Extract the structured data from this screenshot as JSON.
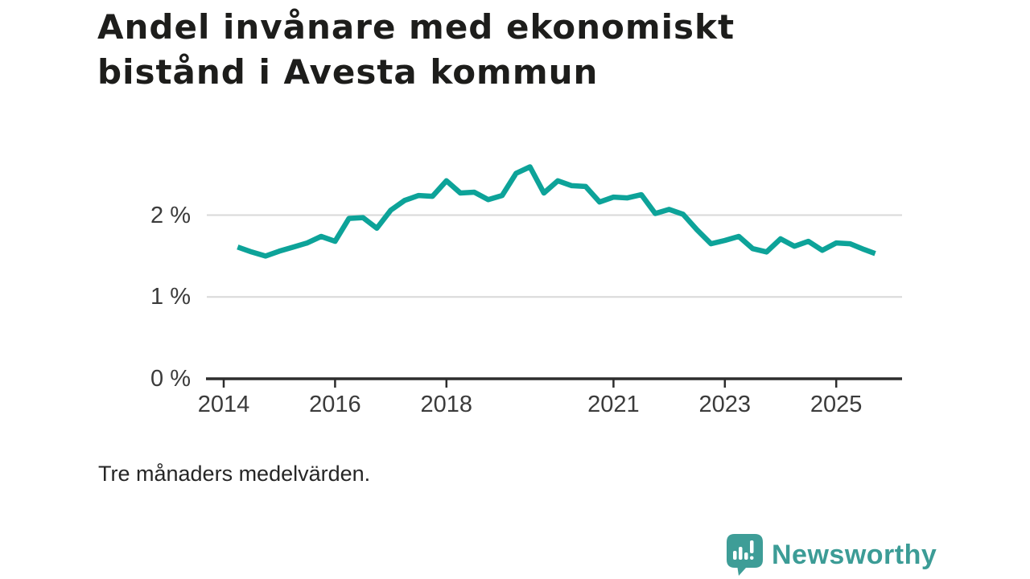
{
  "header": {
    "title_line1": "Andel invånare med ekonomiskt",
    "title_line2": "bistånd i Avesta kommun"
  },
  "footnote": "Tre månaders medelvärden.",
  "branding": {
    "name": "Newsworthy",
    "icon": "newsworthy-speech-bubble-bar-chart-icon",
    "color": "#3c9c96"
  },
  "colors": {
    "line": "#0da399",
    "grid": "#d8d8d8",
    "axis": "#2d2d2d",
    "tick_label": "#3b3b3b",
    "title": "#1d1d1b",
    "background": "#ffffff"
  },
  "chart_data": {
    "type": "line",
    "title": "Andel invånare med ekonomiskt bistånd i Avesta kommun",
    "subtitle_note": "Tre månaders medelvärden.",
    "xlabel": "",
    "ylabel": "",
    "unit": "%",
    "grid": "horizontal",
    "legend": "none",
    "xlim": [
      2013.67,
      2026.18
    ],
    "ylim": [
      0,
      2.75
    ],
    "y_ticks": [
      {
        "value": 2,
        "label": "2 %"
      },
      {
        "value": 1,
        "label": "1 %"
      },
      {
        "value": 0,
        "label": "0 %"
      }
    ],
    "x_ticks": [
      {
        "value": 2014,
        "label": "2014"
      },
      {
        "value": 2016,
        "label": "2016"
      },
      {
        "value": 2018,
        "label": "2018"
      },
      {
        "value": 2021,
        "label": "2021"
      },
      {
        "value": 2023,
        "label": "2023"
      },
      {
        "value": 2025,
        "label": "2025"
      }
    ],
    "series": [
      {
        "name": "Andel invånare med ekonomiskt bistånd",
        "points": [
          [
            2014.25,
            1.61
          ],
          [
            2014.5,
            1.55
          ],
          [
            2014.75,
            1.5
          ],
          [
            2015.0,
            1.56
          ],
          [
            2015.25,
            1.61
          ],
          [
            2015.5,
            1.66
          ],
          [
            2015.75,
            1.74
          ],
          [
            2016.0,
            1.68
          ],
          [
            2016.25,
            1.96
          ],
          [
            2016.5,
            1.97
          ],
          [
            2016.75,
            1.84
          ],
          [
            2017.0,
            2.06
          ],
          [
            2017.25,
            2.18
          ],
          [
            2017.5,
            2.24
          ],
          [
            2017.75,
            2.23
          ],
          [
            2018.0,
            2.42
          ],
          [
            2018.25,
            2.27
          ],
          [
            2018.5,
            2.28
          ],
          [
            2018.75,
            2.19
          ],
          [
            2019.0,
            2.24
          ],
          [
            2019.25,
            2.51
          ],
          [
            2019.5,
            2.59
          ],
          [
            2019.75,
            2.27
          ],
          [
            2020.0,
            2.42
          ],
          [
            2020.25,
            2.36
          ],
          [
            2020.5,
            2.35
          ],
          [
            2020.75,
            2.16
          ],
          [
            2021.0,
            2.22
          ],
          [
            2021.25,
            2.21
          ],
          [
            2021.5,
            2.25
          ],
          [
            2021.75,
            2.02
          ],
          [
            2022.0,
            2.07
          ],
          [
            2022.25,
            2.01
          ],
          [
            2022.5,
            1.82
          ],
          [
            2022.75,
            1.65
          ],
          [
            2023.0,
            1.69
          ],
          [
            2023.25,
            1.74
          ],
          [
            2023.5,
            1.59
          ],
          [
            2023.75,
            1.55
          ],
          [
            2024.0,
            1.71
          ],
          [
            2024.25,
            1.62
          ],
          [
            2024.5,
            1.68
          ],
          [
            2024.75,
            1.57
          ],
          [
            2025.0,
            1.66
          ],
          [
            2025.25,
            1.65
          ],
          [
            2025.5,
            1.58
          ],
          [
            2025.7,
            1.53
          ]
        ]
      }
    ]
  }
}
